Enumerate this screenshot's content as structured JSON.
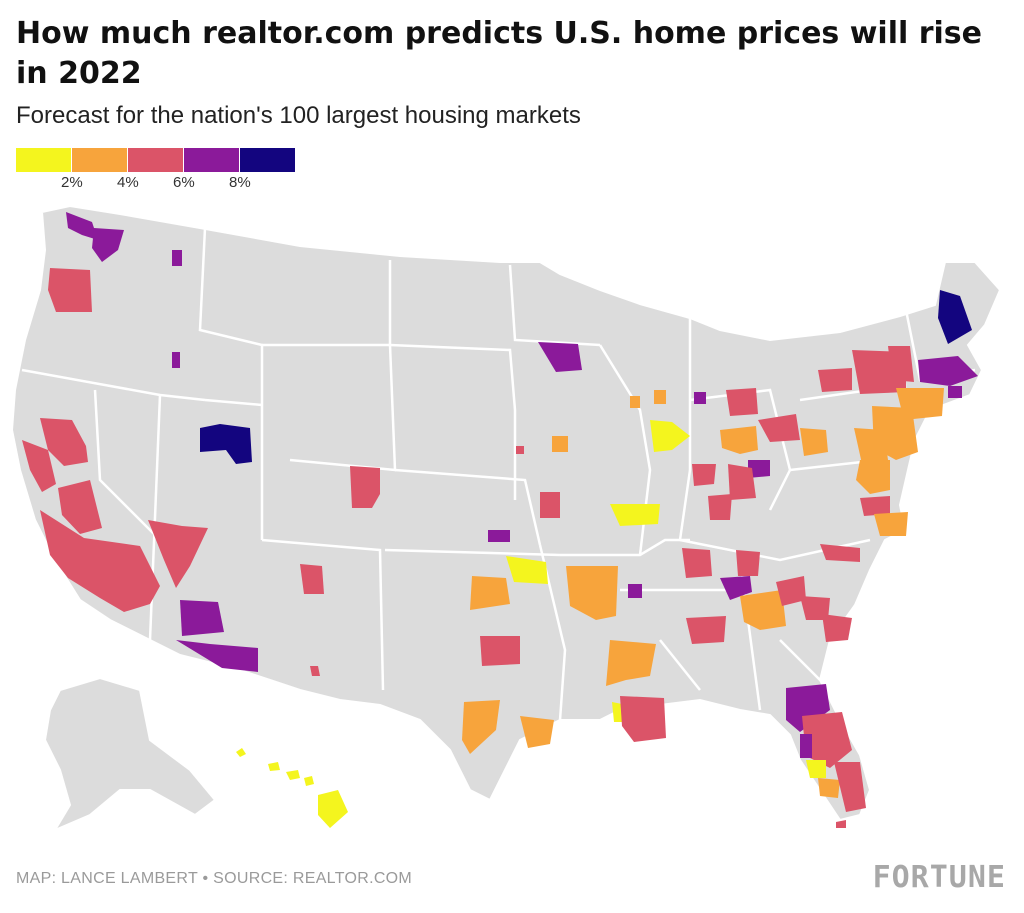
{
  "title": "How much realtor.com predicts U.S. home prices will rise in 2022",
  "subtitle": "Forecast for the nation's 100 largest housing markets",
  "legend": {
    "colors": [
      "#f4f51e",
      "#f7a43c",
      "#db5468",
      "#8b1a9a",
      "#13057f"
    ],
    "ticks": [
      "2%",
      "4%",
      "6%",
      "8%"
    ]
  },
  "footer": {
    "source": "MAP: LANCE LAMBERT • SOURCE: REALTOR.COM",
    "brand": "FORTUNE"
  },
  "colors": {
    "land": "#dcdcdc",
    "borders": "#ffffff",
    "text": "#111111"
  }
}
